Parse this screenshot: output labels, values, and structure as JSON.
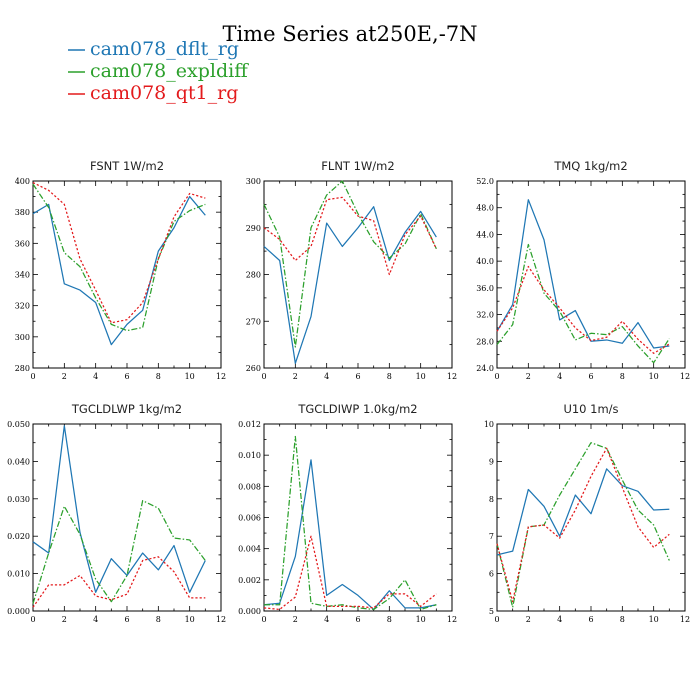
{
  "page": {
    "title": "Time Series at250E,-7N"
  },
  "legend": [
    {
      "label": "cam078_dflt_rg",
      "color": "#1f77b4",
      "dash": "solid"
    },
    {
      "label": "cam078_expldiff",
      "color": "#2ca02c",
      "dash": "dashdot"
    },
    {
      "label": "cam078_qt1_rg",
      "color": "#e31a1c",
      "dash": "dotted"
    }
  ],
  "chart_data": [
    {
      "type": "line",
      "title": "FSNT   1W/m2",
      "xlim": [
        0,
        12
      ],
      "xticks": [
        0,
        2,
        4,
        6,
        8,
        10,
        12
      ],
      "ylim": [
        280,
        400
      ],
      "yticks": [
        280,
        300,
        320,
        340,
        360,
        380,
        400
      ],
      "ytick_labels": [
        "280",
        "300",
        "320",
        "340",
        "360",
        "380",
        "400"
      ],
      "x": [
        0,
        1,
        2,
        3,
        4,
        5,
        6,
        7,
        8,
        9,
        10,
        11
      ],
      "series": [
        {
          "name": "cam078_dflt_rg",
          "values": [
            379,
            385,
            334,
            330,
            322,
            295,
            308,
            317,
            355,
            370,
            390,
            378
          ]
        },
        {
          "name": "cam078_expldiff",
          "values": [
            398,
            383,
            354,
            345,
            325,
            308,
            304,
            306,
            350,
            374,
            381,
            385
          ]
        },
        {
          "name": "cam078_qt1_rg",
          "values": [
            399,
            394,
            385,
            350,
            330,
            309,
            311,
            322,
            350,
            377,
            392,
            389
          ]
        }
      ]
    },
    {
      "type": "line",
      "title": "FLNT   1W/m2",
      "xlim": [
        0,
        12
      ],
      "xticks": [
        0,
        2,
        4,
        6,
        8,
        10,
        12
      ],
      "ylim": [
        260,
        300
      ],
      "yticks": [
        260,
        270,
        280,
        290,
        300
      ],
      "ytick_labels": [
        "260",
        "270",
        "280",
        "290",
        "300"
      ],
      "x": [
        0,
        1,
        2,
        3,
        4,
        5,
        6,
        7,
        8,
        9,
        10,
        11
      ],
      "series": [
        {
          "name": "cam078_dflt_rg",
          "values": [
            286,
            283,
            261,
            271,
            291,
            286,
            290,
            294.5,
            283,
            289,
            293.5,
            288
          ]
        },
        {
          "name": "cam078_expldiff",
          "values": [
            295,
            288,
            264.5,
            290,
            297,
            300,
            293,
            287,
            283.5,
            286.5,
            293,
            285.5
          ]
        },
        {
          "name": "cam078_qt1_rg",
          "values": [
            290,
            287.5,
            283,
            286,
            296,
            296.5,
            292.5,
            291.5,
            280,
            288.5,
            292.5,
            285.5
          ]
        }
      ]
    },
    {
      "type": "line",
      "title": "TMQ   1kg/m2",
      "xlim": [
        0,
        12
      ],
      "xticks": [
        0,
        2,
        4,
        6,
        8,
        10,
        12
      ],
      "ylim": [
        24,
        52
      ],
      "yticks": [
        24,
        28,
        32,
        36,
        40,
        44,
        48,
        52
      ],
      "ytick_labels": [
        "24.0",
        "28.0",
        "32.0",
        "36.0",
        "40.0",
        "44.0",
        "48.0",
        "52.0"
      ],
      "x": [
        0,
        1,
        2,
        3,
        4,
        5,
        6,
        7,
        8,
        9,
        10,
        11
      ],
      "series": [
        {
          "name": "cam078_dflt_rg",
          "values": [
            29.5,
            33.5,
            49.2,
            43.2,
            31.2,
            32.6,
            28.0,
            28.2,
            27.7,
            30.8,
            27.0,
            27.3
          ]
        },
        {
          "name": "cam078_expldiff",
          "values": [
            27.5,
            30.5,
            42.5,
            35.2,
            32.5,
            28.2,
            29.2,
            29.0,
            30.2,
            27.3,
            24.8,
            28.4
          ]
        },
        {
          "name": "cam078_qt1_rg",
          "values": [
            29.5,
            33.0,
            39.2,
            35.7,
            33.0,
            30.0,
            28.1,
            28.6,
            31.0,
            28.3,
            26.2,
            27.6
          ]
        }
      ]
    },
    {
      "type": "line",
      "title": "TGCLDLWP   1kg/m2",
      "xlim": [
        0,
        12
      ],
      "xticks": [
        0,
        2,
        4,
        6,
        8,
        10,
        12
      ],
      "ylim": [
        0,
        0.05
      ],
      "yticks": [
        0,
        0.01,
        0.02,
        0.03,
        0.04,
        0.05
      ],
      "ytick_labels": [
        "0.000",
        "0.010",
        "0.020",
        "0.030",
        "0.040",
        "0.050"
      ],
      "x": [
        0,
        1,
        2,
        3,
        4,
        5,
        6,
        7,
        8,
        9,
        10,
        11
      ],
      "series": [
        {
          "name": "cam078_dflt_rg",
          "values": [
            0.0185,
            0.0155,
            0.0495,
            0.021,
            0.005,
            0.014,
            0.0095,
            0.0155,
            0.011,
            0.0175,
            0.005,
            0.0135
          ]
        },
        {
          "name": "cam078_expldiff",
          "values": [
            0.002,
            0.0155,
            0.028,
            0.0205,
            0.0085,
            0.0025,
            0.0095,
            0.0295,
            0.0275,
            0.0195,
            0.019,
            0.0135
          ]
        },
        {
          "name": "cam078_qt1_rg",
          "values": [
            0.001,
            0.007,
            0.007,
            0.0095,
            0.004,
            0.003,
            0.0045,
            0.0135,
            0.0145,
            0.0105,
            0.0035,
            0.0035
          ]
        }
      ]
    },
    {
      "type": "line",
      "title": "TGCLDIWP   1.0kg/m2",
      "xlim": [
        0,
        12
      ],
      "xticks": [
        0,
        2,
        4,
        6,
        8,
        10,
        12
      ],
      "ylim": [
        0,
        0.012
      ],
      "yticks": [
        0,
        0.002,
        0.004,
        0.006,
        0.008,
        0.01,
        0.012
      ],
      "ytick_labels": [
        "0.000",
        "0.002",
        "0.004",
        "0.006",
        "0.008",
        "0.010",
        "0.012"
      ],
      "x": [
        0,
        1,
        2,
        3,
        4,
        5,
        6,
        7,
        8,
        9,
        10,
        11
      ],
      "series": [
        {
          "name": "cam078_dflt_rg",
          "values": [
            0.0004,
            0.0005,
            0.0035,
            0.0097,
            0.001,
            0.0017,
            0.001,
            0.0001,
            0.0013,
            0.0002,
            0.0002,
            0.0004
          ]
        },
        {
          "name": "cam078_expldiff",
          "values": [
            0.0004,
            0.0004,
            0.0112,
            0.0005,
            0.0003,
            0.0004,
            0.0002,
            0.0001,
            0.0008,
            0.002,
            0.0001,
            0.0004
          ]
        },
        {
          "name": "cam078_qt1_rg",
          "values": [
            0.0002,
            0.0001,
            0.0009,
            0.0048,
            0.0003,
            0.0003,
            0.0003,
            0.0002,
            0.0011,
            0.0011,
            0.0003,
            0.0011
          ]
        }
      ]
    },
    {
      "type": "line",
      "title": "U10   1m/s",
      "xlim": [
        0,
        12
      ],
      "xticks": [
        0,
        2,
        4,
        6,
        8,
        10,
        12
      ],
      "ylim": [
        5,
        10
      ],
      "yticks": [
        5,
        6,
        7,
        8,
        9,
        10
      ],
      "ytick_labels": [
        "5",
        "6",
        "7",
        "8",
        "9",
        "10"
      ],
      "x": [
        0,
        1,
        2,
        3,
        4,
        5,
        6,
        7,
        8,
        9,
        10,
        11
      ],
      "series": [
        {
          "name": "cam078_dflt_rg",
          "values": [
            6.5,
            6.6,
            8.25,
            7.8,
            7.0,
            8.1,
            7.6,
            8.8,
            8.35,
            8.2,
            7.7,
            7.72
          ]
        },
        {
          "name": "cam078_expldiff",
          "values": [
            6.8,
            5.1,
            7.25,
            7.3,
            8.1,
            8.8,
            9.5,
            9.35,
            8.5,
            7.7,
            7.3,
            6.35
          ]
        },
        {
          "name": "cam078_qt1_rg",
          "values": [
            6.8,
            5.25,
            7.25,
            7.3,
            6.95,
            7.7,
            8.6,
            9.35,
            8.3,
            7.25,
            6.7,
            7.05
          ]
        }
      ]
    }
  ]
}
